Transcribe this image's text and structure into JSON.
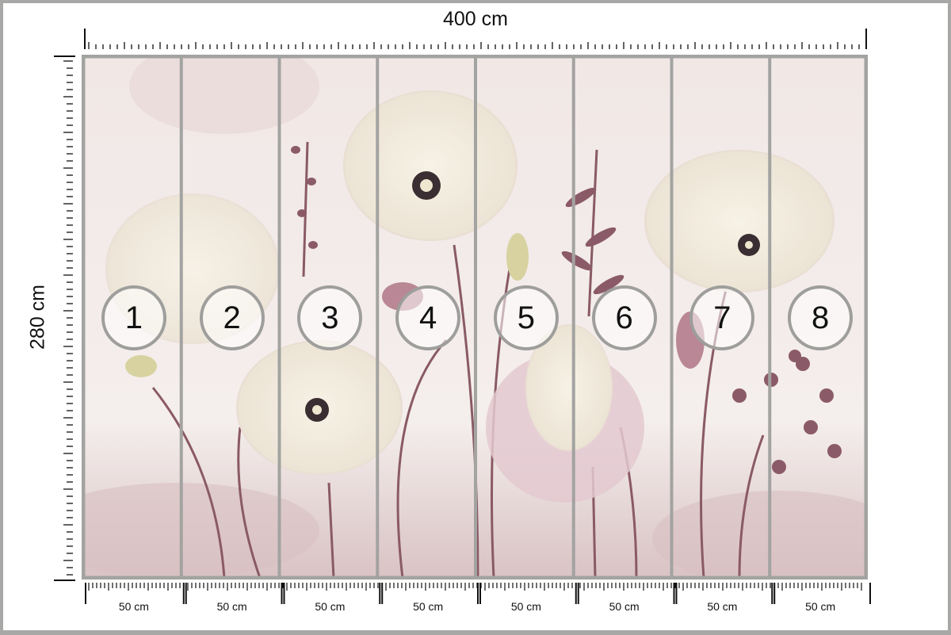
{
  "dimensions": {
    "width_label": "400 cm",
    "height_label": "280 cm"
  },
  "panels": [
    {
      "number": "1",
      "width_label": "50 cm"
    },
    {
      "number": "2",
      "width_label": "50 cm"
    },
    {
      "number": "3",
      "width_label": "50 cm"
    },
    {
      "number": "4",
      "width_label": "50 cm"
    },
    {
      "number": "5",
      "width_label": "50 cm"
    },
    {
      "number": "6",
      "width_label": "50 cm"
    },
    {
      "number": "7",
      "width_label": "50 cm"
    },
    {
      "number": "8",
      "width_label": "50 cm"
    }
  ],
  "colors": {
    "background": "#efe4e3",
    "panel_divider": "#a3a3a1",
    "petal": "#f3ecdf",
    "pink": "#c9a1b0",
    "stem": "#8a5a64"
  }
}
